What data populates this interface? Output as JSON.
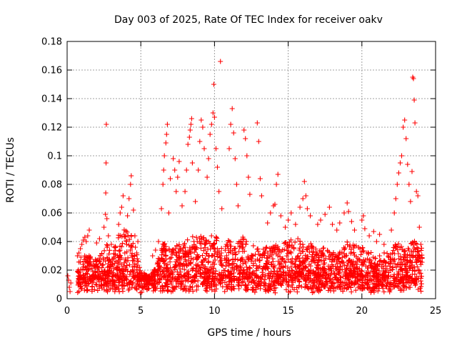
{
  "colors": {
    "series": "#ff0000",
    "grid": "#a0a0a0",
    "axis": "#000000"
  },
  "chart_data": {
    "type": "scatter",
    "title": "Day 003 of 2025, Rate Of TEC Index for receiver oakv",
    "xlabel": "GPS time / hours",
    "ylabel": "ROTI / TECUs",
    "xlim": [
      0,
      25
    ],
    "ylim": [
      0,
      0.18
    ],
    "xticks": [
      0,
      5,
      10,
      15,
      20,
      25
    ],
    "xtick_labels": [
      "0",
      "5",
      "10",
      "15",
      "20",
      "25"
    ],
    "yticks": [
      0,
      0.02,
      0.04,
      0.06,
      0.08,
      0.1,
      0.12,
      0.14,
      0.16,
      0.18
    ],
    "ytick_labels": [
      "0",
      "0.02",
      "0.04",
      "0.06",
      "0.08",
      "0.1",
      "0.12",
      "0.14",
      "0.16",
      "0.18"
    ],
    "grid": true,
    "marker": "+",
    "series": [
      {
        "name": "oakv",
        "points": [
          [
            0.05,
            0.016
          ],
          [
            0.1,
            0.013
          ],
          [
            0.15,
            0.008
          ],
          [
            0.2,
            0.005
          ],
          [
            0.25,
            0.011
          ],
          [
            0.7,
            0.03
          ],
          [
            0.8,
            0.032
          ],
          [
            0.9,
            0.035
          ],
          [
            1.0,
            0.038
          ],
          [
            1.1,
            0.041
          ],
          [
            1.2,
            0.043
          ],
          [
            1.3,
            0.04
          ],
          [
            1.4,
            0.044
          ],
          [
            1.5,
            0.048
          ],
          [
            2.0,
            0.039
          ],
          [
            2.2,
            0.042
          ],
          [
            2.5,
            0.05
          ],
          [
            2.6,
            0.059
          ],
          [
            2.62,
            0.074
          ],
          [
            2.64,
            0.095
          ],
          [
            2.66,
            0.122
          ],
          [
            2.7,
            0.056
          ],
          [
            2.8,
            0.044
          ],
          [
            3.0,
            0.038
          ],
          [
            3.5,
            0.052
          ],
          [
            3.6,
            0.06
          ],
          [
            3.7,
            0.064
          ],
          [
            3.8,
            0.072
          ],
          [
            3.85,
            0.045
          ],
          [
            4.1,
            0.058
          ],
          [
            4.2,
            0.07
          ],
          [
            4.3,
            0.08
          ],
          [
            4.35,
            0.086
          ],
          [
            4.5,
            0.062
          ],
          [
            4.6,
            0.044
          ],
          [
            4.8,
            0.04
          ],
          [
            5.8,
            0.03
          ],
          [
            6.0,
            0.034
          ],
          [
            6.2,
            0.04
          ],
          [
            6.4,
            0.063
          ],
          [
            6.5,
            0.08
          ],
          [
            6.55,
            0.09
          ],
          [
            6.6,
            0.1
          ],
          [
            6.7,
            0.109
          ],
          [
            6.75,
            0.115
          ],
          [
            6.8,
            0.122
          ],
          [
            6.9,
            0.06
          ],
          [
            7.0,
            0.084
          ],
          [
            7.2,
            0.098
          ],
          [
            7.3,
            0.09
          ],
          [
            7.4,
            0.075
          ],
          [
            7.5,
            0.085
          ],
          [
            7.6,
            0.096
          ],
          [
            7.8,
            0.065
          ],
          [
            8.0,
            0.075
          ],
          [
            8.1,
            0.09
          ],
          [
            8.2,
            0.108
          ],
          [
            8.3,
            0.113
          ],
          [
            8.35,
            0.118
          ],
          [
            8.4,
            0.122
          ],
          [
            8.45,
            0.126
          ],
          [
            8.5,
            0.095
          ],
          [
            8.7,
            0.068
          ],
          [
            8.9,
            0.09
          ],
          [
            9.0,
            0.11
          ],
          [
            9.1,
            0.125
          ],
          [
            9.2,
            0.12
          ],
          [
            9.3,
            0.105
          ],
          [
            9.5,
            0.085
          ],
          [
            9.6,
            0.098
          ],
          [
            9.7,
            0.115
          ],
          [
            9.8,
            0.122
          ],
          [
            9.9,
            0.13
          ],
          [
            9.95,
            0.15
          ],
          [
            10.0,
            0.127
          ],
          [
            10.1,
            0.105
          ],
          [
            10.2,
            0.092
          ],
          [
            10.3,
            0.075
          ],
          [
            10.4,
            0.166
          ],
          [
            10.5,
            0.063
          ],
          [
            11.0,
            0.105
          ],
          [
            11.1,
            0.122
          ],
          [
            11.2,
            0.133
          ],
          [
            11.3,
            0.116
          ],
          [
            11.4,
            0.098
          ],
          [
            11.5,
            0.08
          ],
          [
            11.6,
            0.065
          ],
          [
            12.0,
            0.118
          ],
          [
            12.1,
            0.112
          ],
          [
            12.2,
            0.1
          ],
          [
            12.3,
            0.085
          ],
          [
            12.4,
            0.073
          ],
          [
            12.9,
            0.123
          ],
          [
            13.0,
            0.11
          ],
          [
            13.1,
            0.084
          ],
          [
            13.2,
            0.072
          ],
          [
            13.6,
            0.053
          ],
          [
            13.8,
            0.06
          ],
          [
            14.0,
            0.065
          ],
          [
            14.1,
            0.066
          ],
          [
            14.2,
            0.08
          ],
          [
            14.3,
            0.087
          ],
          [
            14.5,
            0.058
          ],
          [
            14.8,
            0.05
          ],
          [
            15.0,
            0.055
          ],
          [
            15.2,
            0.06
          ],
          [
            15.5,
            0.052
          ],
          [
            15.8,
            0.064
          ],
          [
            16.0,
            0.07
          ],
          [
            16.1,
            0.082
          ],
          [
            16.2,
            0.072
          ],
          [
            16.3,
            0.063
          ],
          [
            16.5,
            0.058
          ],
          [
            17.0,
            0.052
          ],
          [
            17.2,
            0.055
          ],
          [
            17.5,
            0.059
          ],
          [
            17.8,
            0.064
          ],
          [
            18.0,
            0.052
          ],
          [
            18.3,
            0.048
          ],
          [
            18.5,
            0.053
          ],
          [
            18.8,
            0.06
          ],
          [
            19.0,
            0.067
          ],
          [
            19.1,
            0.061
          ],
          [
            19.3,
            0.054
          ],
          [
            19.5,
            0.048
          ],
          [
            20.0,
            0.055
          ],
          [
            20.1,
            0.058
          ],
          [
            20.2,
            0.049
          ],
          [
            20.5,
            0.044
          ],
          [
            20.8,
            0.047
          ],
          [
            21.0,
            0.04
          ],
          [
            21.2,
            0.045
          ],
          [
            21.5,
            0.038
          ],
          [
            22.0,
            0.048
          ],
          [
            22.2,
            0.06
          ],
          [
            22.3,
            0.07
          ],
          [
            22.4,
            0.08
          ],
          [
            22.5,
            0.088
          ],
          [
            22.6,
            0.095
          ],
          [
            22.7,
            0.1
          ],
          [
            22.8,
            0.12
          ],
          [
            22.9,
            0.125
          ],
          [
            23.0,
            0.112
          ],
          [
            23.1,
            0.094
          ],
          [
            23.2,
            0.08
          ],
          [
            23.3,
            0.068
          ],
          [
            23.4,
            0.089
          ],
          [
            23.45,
            0.155
          ],
          [
            23.5,
            0.154
          ],
          [
            23.55,
            0.139
          ],
          [
            23.6,
            0.123
          ],
          [
            23.7,
            0.075
          ],
          [
            23.8,
            0.072
          ],
          [
            23.9,
            0.05
          ],
          [
            24.0,
            0.038
          ]
        ]
      }
    ],
    "dense_band": {
      "x_range": [
        0.7,
        24.1
      ],
      "baseline_range": [
        0.004,
        0.016
      ],
      "envelope": [
        [
          0.7,
          0.022
        ],
        [
          1.0,
          0.035
        ],
        [
          1.5,
          0.03
        ],
        [
          2.0,
          0.028
        ],
        [
          2.6,
          0.04
        ],
        [
          3.0,
          0.032
        ],
        [
          3.5,
          0.045
        ],
        [
          4.0,
          0.05
        ],
        [
          4.5,
          0.042
        ],
        [
          5.0,
          0.02
        ],
        [
          5.5,
          0.016
        ],
        [
          6.0,
          0.022
        ],
        [
          6.5,
          0.04
        ],
        [
          7.0,
          0.034
        ],
        [
          7.5,
          0.038
        ],
        [
          8.0,
          0.04
        ],
        [
          8.5,
          0.045
        ],
        [
          9.0,
          0.046
        ],
        [
          9.5,
          0.04
        ],
        [
          10.0,
          0.048
        ],
        [
          10.5,
          0.036
        ],
        [
          11.0,
          0.042
        ],
        [
          11.5,
          0.04
        ],
        [
          12.0,
          0.044
        ],
        [
          12.5,
          0.038
        ],
        [
          13.0,
          0.035
        ],
        [
          13.5,
          0.036
        ],
        [
          14.0,
          0.04
        ],
        [
          14.5,
          0.036
        ],
        [
          15.0,
          0.042
        ],
        [
          15.5,
          0.045
        ],
        [
          16.0,
          0.038
        ],
        [
          16.5,
          0.04
        ],
        [
          17.0,
          0.034
        ],
        [
          17.5,
          0.036
        ],
        [
          18.0,
          0.032
        ],
        [
          18.5,
          0.034
        ],
        [
          19.0,
          0.04
        ],
        [
          19.5,
          0.038
        ],
        [
          20.0,
          0.036
        ],
        [
          20.5,
          0.034
        ],
        [
          21.0,
          0.03
        ],
        [
          21.5,
          0.032
        ],
        [
          22.0,
          0.036
        ],
        [
          22.5,
          0.04
        ],
        [
          23.0,
          0.035
        ],
        [
          23.5,
          0.042
        ],
        [
          24.1,
          0.035
        ]
      ],
      "point_count": 2600
    }
  }
}
